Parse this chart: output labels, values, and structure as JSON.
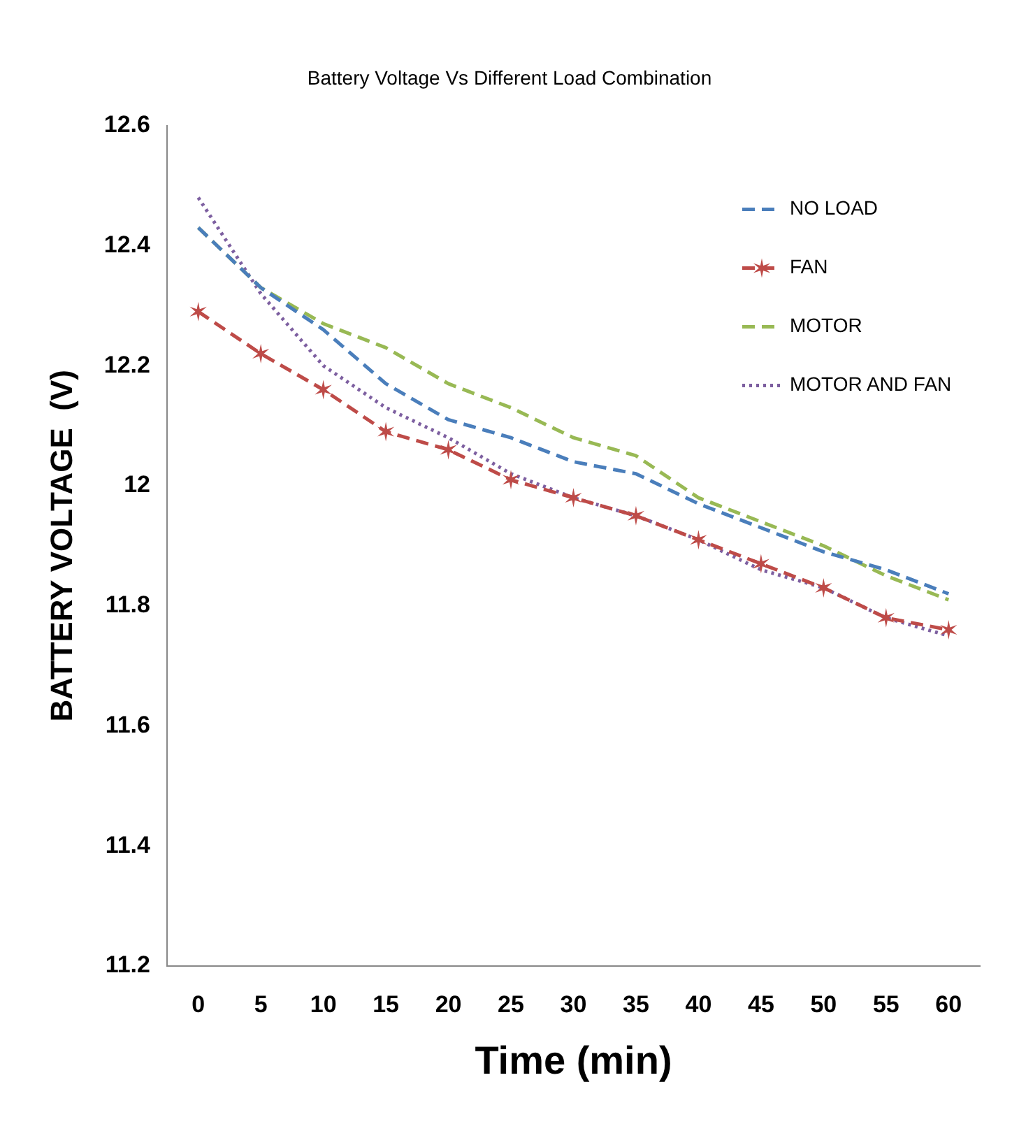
{
  "chart_data": {
    "type": "line",
    "title": "Battery Voltage Vs Different Load Combination",
    "xlabel": "Time (min)",
    "ylabel": "BATTERY VOLTAGE  (V)",
    "categories": [
      "0",
      "5",
      "10",
      "15",
      "20",
      "25",
      "30",
      "35",
      "40",
      "45",
      "50",
      "55",
      "60"
    ],
    "ylim": [
      11.2,
      12.6
    ],
    "yticks": [
      11.2,
      11.4,
      11.6,
      11.8,
      12,
      12.2,
      12.4,
      12.6
    ],
    "grid": false,
    "legend": "top right",
    "marker": "none",
    "series": [
      {
        "name": "NO LOAD",
        "color": "#4a7ebb",
        "line_style": "dashed",
        "values": [
          12.43,
          12.33,
          12.26,
          12.17,
          12.11,
          12.08,
          12.04,
          12.02,
          11.97,
          11.93,
          11.89,
          11.86,
          11.82
        ]
      },
      {
        "name": "FAN",
        "color": "#be4b48",
        "line_style": "dashed",
        "marker": "cross",
        "values": [
          12.29,
          12.22,
          12.16,
          12.09,
          12.06,
          12.01,
          11.98,
          11.95,
          11.91,
          11.87,
          11.83,
          11.78,
          11.76
        ]
      },
      {
        "name": "MOTOR",
        "color": "#98b954",
        "line_style": "dashed",
        "values": [
          12.43,
          12.33,
          12.27,
          12.23,
          12.17,
          12.13,
          12.08,
          12.05,
          11.98,
          11.94,
          11.9,
          11.85,
          11.81
        ]
      },
      {
        "name": "MOTOR AND FAN",
        "color": "#7d5fa0",
        "line_style": "dotted",
        "values": [
          12.48,
          12.32,
          12.2,
          12.13,
          12.08,
          12.02,
          11.98,
          11.95,
          11.91,
          11.86,
          11.83,
          11.78,
          11.75
        ]
      }
    ]
  }
}
